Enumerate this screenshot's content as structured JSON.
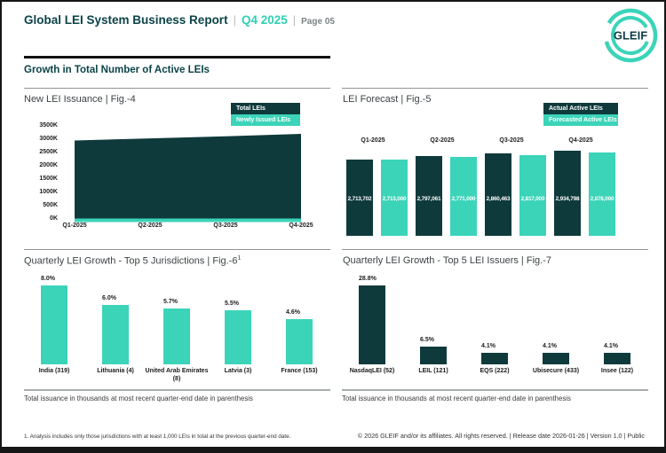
{
  "header": {
    "title": "Global LEI System Business Report",
    "separator": "|",
    "quarter": "Q4 2025",
    "page_label": "Page 05",
    "logo_text": "GLEIF"
  },
  "section": {
    "title": "Growth in Total Number of Active LEIs"
  },
  "footer": {
    "footnote": "1. Analysis includes only those jurisdictions with at least 1,000 LEIs in total at the previous quarter-end date.",
    "copyright": "© 2026 GLEIF and/or its affiliates. All rights reserved. | Release date 2026-01-26 | Version 1.0 | Public"
  },
  "colors": {
    "dark_teal": "#0f3a3c",
    "teal": "#3bd4b9",
    "heading_teal": "#0b4347"
  },
  "chart_data": [
    {
      "id": "fig-4",
      "type": "area",
      "title": "New LEI Issuance | Fig.-4",
      "x": [
        "Q1-2025",
        "Q2-2025",
        "Q3-2025",
        "Q4-2025"
      ],
      "series": [
        {
          "name": "Total LEIs",
          "color": "#0f3a3c",
          "values": [
            2950000,
            3030000,
            3110000,
            3200000
          ]
        },
        {
          "name": "Newly Issued LEIs",
          "color": "#3bd4b9",
          "values": [
            90000,
            90000,
            90000,
            90000
          ]
        }
      ],
      "yticks": [
        "3500K",
        "3000K",
        "2500K",
        "2000K",
        "1500K",
        "1000K",
        "500K",
        "0K"
      ],
      "ylim": [
        0,
        3500000
      ],
      "legend_position": "top-right",
      "grid": false
    },
    {
      "id": "fig-5",
      "type": "bar",
      "title": "LEI Forecast | Fig.-5",
      "categories": [
        "Q1-2025",
        "Q2-2025",
        "Q3-2025",
        "Q4-2025"
      ],
      "series": [
        {
          "name": "Actual Active LEIs",
          "color": "#0f3a3c",
          "values": [
            2713702,
            2797061,
            2860463,
            2934798
          ],
          "labels": [
            "2,713,702",
            "2,797,061",
            "2,860,463",
            "2,934,798"
          ]
        },
        {
          "name": "Forecasted Active LEIs",
          "color": "#3bd4b9",
          "values": [
            2713000,
            2771000,
            2817000,
            2878000
          ],
          "labels": [
            "2,713,000",
            "2,771,000",
            "2,817,000",
            "2,878,000"
          ]
        }
      ],
      "legend_position": "top-right",
      "value_labels": "inside-white"
    },
    {
      "id": "fig-6",
      "type": "bar",
      "title": "Quarterly LEI Growth - Top 5 Jurisdictions | Fig.-6",
      "title_superscript": "1",
      "categories": [
        "India (319)",
        "Lithuania (4)",
        "United Arab Emirates (8)",
        "Latvia (3)",
        "France (153)"
      ],
      "values": [
        8.0,
        6.0,
        5.7,
        5.5,
        4.6
      ],
      "labels": [
        "8.0%",
        "6.0%",
        "5.7%",
        "5.5%",
        "4.6%"
      ],
      "bar_color": "#3bd4b9",
      "note": "Total issuance in thousands at most recent quarter-end date in parenthesis"
    },
    {
      "id": "fig-7",
      "type": "bar",
      "title": "Quarterly LEI Growth - Top 5 LEI Issuers | Fig.-7",
      "categories": [
        "NasdaqLEI (52)",
        "LEIL (121)",
        "EQS (222)",
        "Ubisecure (433)",
        "Insee (122)"
      ],
      "values": [
        28.8,
        6.5,
        4.1,
        4.1,
        4.1
      ],
      "labels": [
        "28.8%",
        "6.5%",
        "4.1%",
        "4.1%",
        "4.1%"
      ],
      "bar_color": "#0f3a3c",
      "note": "Total issuance in thousands at most recent quarter-end date in parenthesis"
    }
  ]
}
